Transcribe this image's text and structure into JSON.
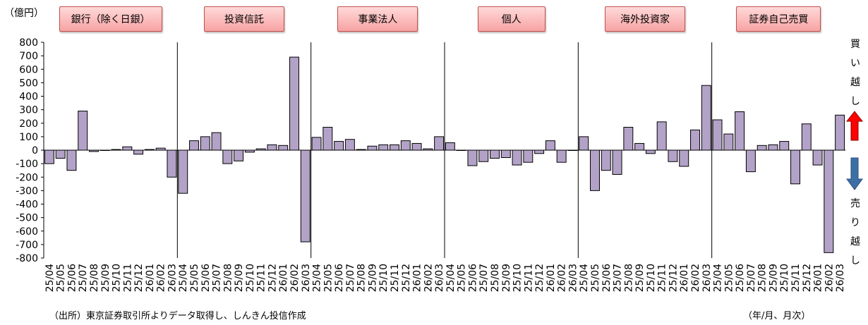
{
  "unit_label": "（億円）",
  "source_label": "（出所）東京証券取引所よりデータ取得し、しんきん投信作成",
  "period_label": "（年/月、月次）",
  "buy_label": [
    "買",
    "い",
    "越",
    "し"
  ],
  "sell_label": [
    "売",
    "り",
    "越",
    "し"
  ],
  "colors": {
    "bar_fill": "#b3a2c7",
    "bar_stroke": "#000000",
    "buy_arrow": "#ff0000",
    "sell_arrow": "#3d6fa5",
    "category_fill": "#f9b8b8",
    "category_border": "#c0504d"
  },
  "chart_data": {
    "type": "bar",
    "ylim": [
      -800,
      800
    ],
    "yticks": [
      800,
      700,
      600,
      500,
      400,
      300,
      200,
      100,
      0,
      -100,
      -200,
      -300,
      -400,
      -500,
      -600,
      -700,
      -800
    ],
    "categories": [
      "25/04",
      "25/05",
      "25/06",
      "25/07",
      "25/08",
      "25/09",
      "25/10",
      "25/11",
      "25/12",
      "26/01",
      "26/02",
      "26/03"
    ],
    "grid": false,
    "series": [
      {
        "name": "銀行（除く日銀）",
        "values": [
          -100,
          -60,
          -150,
          290,
          -10,
          0,
          5,
          25,
          -30,
          5,
          15,
          -200
        ]
      },
      {
        "name": "投資信託",
        "values": [
          -320,
          70,
          100,
          130,
          -100,
          -80,
          -15,
          10,
          40,
          35,
          690,
          -680
        ]
      },
      {
        "name": "事業法人",
        "values": [
          95,
          170,
          65,
          80,
          5,
          30,
          40,
          40,
          70,
          50,
          10,
          100
        ]
      },
      {
        "name": "個人",
        "values": [
          55,
          0,
          -115,
          -85,
          -60,
          -55,
          -110,
          -90,
          -25,
          70,
          -90,
          0
        ]
      },
      {
        "name": "海外投資家",
        "values": [
          100,
          -300,
          -150,
          -180,
          170,
          50,
          -25,
          210,
          -85,
          -120,
          150,
          480
        ]
      },
      {
        "name": "証券自己売買",
        "values": [
          225,
          120,
          285,
          -160,
          35,
          40,
          65,
          -250,
          195,
          -110,
          -760,
          260
        ]
      }
    ]
  }
}
